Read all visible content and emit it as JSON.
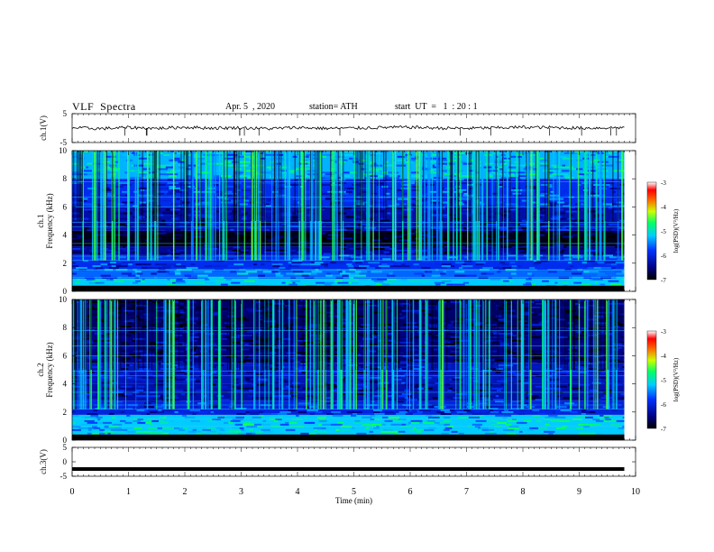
{
  "header": {
    "title": "VLF  Spectra",
    "date": "Apr. 5  , 2020",
    "station": "station= ATH",
    "start": "start  UT  =   1  : 20 : 1"
  },
  "chart_data": [
    {
      "type": "line",
      "name": "ch1-waveform",
      "ylabel": "ch.1(V)",
      "ylim": [
        -5,
        5
      ],
      "yticks": [
        "5",
        "-5"
      ],
      "x": [
        0,
        0.5,
        1,
        1.5,
        2,
        2.5,
        3,
        3.5,
        4,
        4.5,
        5,
        5.5,
        6,
        6.5,
        7,
        7.5,
        8,
        8.5,
        9,
        9.5,
        9.8
      ],
      "values": [
        0.1,
        -0.2,
        0.2,
        -0.1,
        0.3,
        0.0,
        0.1,
        -0.2,
        0.2,
        -0.1,
        0.0,
        0.2,
        0.3,
        0.0,
        -0.1,
        0.1,
        0.3,
        0.2,
        0.0,
        0.1,
        0.2
      ]
    },
    {
      "type": "heatmap",
      "name": "ch1-spectrogram",
      "ylabel": "ch.1\nFrequency  (kHz)",
      "ylim": [
        0,
        10
      ],
      "yticks": [
        "0",
        "2",
        "4",
        "6",
        "8",
        "10"
      ],
      "colorbar": {
        "label": "log(PSD)(V²/Hz)",
        "ticks": [
          "-3",
          "-4",
          "-5",
          "-6",
          "-7"
        ],
        "range": [
          -7,
          -3
        ]
      },
      "bands_khz": [
        {
          "from": 0,
          "to": 0.3,
          "log_psd": -7.0
        },
        {
          "from": 0.3,
          "to": 0.9,
          "log_psd": -5.2
        },
        {
          "from": 0.9,
          "to": 1.6,
          "log_psd": -5.6
        },
        {
          "from": 1.6,
          "to": 2.6,
          "log_psd": -5.9
        },
        {
          "from": 2.6,
          "to": 3.2,
          "log_psd": -6.4
        },
        {
          "from": 3.2,
          "to": 4.3,
          "log_psd": -6.9
        },
        {
          "from": 4.3,
          "to": 6.0,
          "log_psd": -6.3
        },
        {
          "from": 6.0,
          "to": 8.0,
          "log_psd": -5.9
        },
        {
          "from": 8.0,
          "to": 10.0,
          "log_psd": -5.3
        }
      ]
    },
    {
      "type": "heatmap",
      "name": "ch2-spectrogram",
      "ylabel": "ch.2\nFrequency  (kHz)",
      "ylim": [
        0,
        10
      ],
      "yticks": [
        "0",
        "2",
        "4",
        "6",
        "8",
        "10"
      ],
      "colorbar": {
        "label": "log(PSD)(V²/Hz)",
        "ticks": [
          "-3",
          "-4",
          "-5",
          "-6",
          "-7"
        ],
        "range": [
          -7,
          -3
        ]
      },
      "bands_khz": [
        {
          "from": 0,
          "to": 0.4,
          "log_psd": -6.8
        },
        {
          "from": 0.4,
          "to": 1.8,
          "log_psd": -5.2
        },
        {
          "from": 1.8,
          "to": 2.8,
          "log_psd": -6.0
        },
        {
          "from": 2.8,
          "to": 4.0,
          "log_psd": -6.3
        },
        {
          "from": 4.0,
          "to": 5.5,
          "log_psd": -6.2
        },
        {
          "from": 5.5,
          "to": 8.0,
          "log_psd": -6.5
        },
        {
          "from": 8.0,
          "to": 10.0,
          "log_psd": -6.6
        }
      ]
    },
    {
      "type": "line",
      "name": "ch3-waveform",
      "ylabel": "ch.3(V)",
      "ylim": [
        -5,
        5
      ],
      "yticks": [
        "5",
        "0",
        "-5"
      ],
      "x": [
        0,
        9.8
      ],
      "values": [
        -2.5,
        -2.5
      ]
    }
  ],
  "xaxis": {
    "label": "Time  (min)",
    "ticks": [
      "0",
      "1",
      "2",
      "3",
      "4",
      "5",
      "6",
      "7",
      "8",
      "9",
      "10"
    ],
    "xlim": [
      0,
      10
    ]
  }
}
